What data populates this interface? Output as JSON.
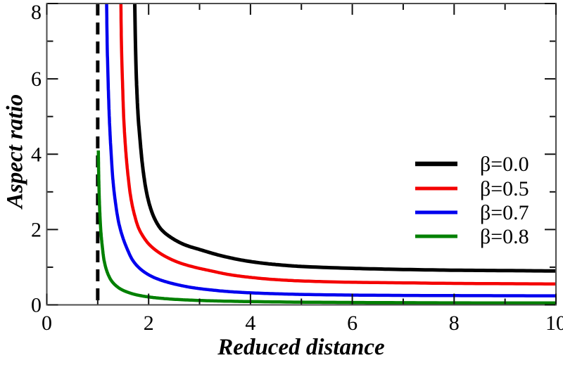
{
  "chart_data": {
    "type": "line",
    "title": "",
    "xlabel": "Reduced distance",
    "ylabel": "Aspect ratio",
    "xlim": [
      0,
      10
    ],
    "ylim": [
      0,
      8
    ],
    "x_major_ticks": [
      0,
      2,
      4,
      6,
      8,
      10
    ],
    "x_tick_labels": [
      "0",
      "2",
      "4",
      "6",
      "8",
      "10"
    ],
    "x_minor_ticks": [
      1,
      3,
      5,
      7,
      9
    ],
    "y_major_ticks": [
      0,
      2,
      4,
      6,
      8
    ],
    "y_tick_labels": [
      "0",
      "2",
      "4",
      "6",
      "8"
    ],
    "y_minor_ticks": [
      1,
      3,
      5,
      7
    ],
    "grid": false,
    "frame_color": "#4d4d4d",
    "tick_color": "#111111",
    "legend_position": "center-right",
    "annotations": [
      {
        "type": "vline",
        "x": 1.0,
        "style": "dashed",
        "color": "#000000"
      }
    ],
    "series": [
      {
        "name": "β=0.0",
        "color": "#000000",
        "line_width": 5,
        "points": [
          [
            1.72,
            8.6
          ],
          [
            1.74,
            7.0
          ],
          [
            1.76,
            6.0
          ],
          [
            1.79,
            5.1
          ],
          [
            1.83,
            4.4
          ],
          [
            1.88,
            3.7
          ],
          [
            1.95,
            3.05
          ],
          [
            2.03,
            2.6
          ],
          [
            2.12,
            2.28
          ],
          [
            2.25,
            2.0
          ],
          [
            2.45,
            1.78
          ],
          [
            2.7,
            1.6
          ],
          [
            3.0,
            1.47
          ],
          [
            3.5,
            1.28
          ],
          [
            4.0,
            1.15
          ],
          [
            4.5,
            1.07
          ],
          [
            5.0,
            1.02
          ],
          [
            6.0,
            0.97
          ],
          [
            7.0,
            0.94
          ],
          [
            8.0,
            0.92
          ],
          [
            9.0,
            0.91
          ],
          [
            10.0,
            0.9
          ]
        ]
      },
      {
        "name": "β=0.5",
        "color": "#f40000",
        "line_width": 4.5,
        "points": [
          [
            1.45,
            8.6
          ],
          [
            1.465,
            7.0
          ],
          [
            1.485,
            6.0
          ],
          [
            1.51,
            5.0
          ],
          [
            1.545,
            4.2
          ],
          [
            1.59,
            3.5
          ],
          [
            1.65,
            2.85
          ],
          [
            1.72,
            2.4
          ],
          [
            1.8,
            2.05
          ],
          [
            1.9,
            1.8
          ],
          [
            2.0,
            1.62
          ],
          [
            2.15,
            1.44
          ],
          [
            2.35,
            1.27
          ],
          [
            2.6,
            1.12
          ],
          [
            2.9,
            1.0
          ],
          [
            3.2,
            0.91
          ],
          [
            3.6,
            0.8
          ],
          [
            4.0,
            0.73
          ],
          [
            4.5,
            0.67
          ],
          [
            5.0,
            0.635
          ],
          [
            6.0,
            0.6
          ],
          [
            7.0,
            0.585
          ],
          [
            8.0,
            0.57
          ],
          [
            9.0,
            0.562
          ],
          [
            10.0,
            0.556
          ]
        ]
      },
      {
        "name": "β=0.7",
        "color": "#0000ee",
        "line_width": 4.5,
        "points": [
          [
            1.17,
            8.6
          ],
          [
            1.185,
            7.0
          ],
          [
            1.205,
            5.9
          ],
          [
            1.23,
            4.9
          ],
          [
            1.26,
            4.1
          ],
          [
            1.3,
            3.3
          ],
          [
            1.35,
            2.7
          ],
          [
            1.41,
            2.2
          ],
          [
            1.49,
            1.8
          ],
          [
            1.58,
            1.48
          ],
          [
            1.68,
            1.2
          ],
          [
            1.8,
            1.0
          ],
          [
            1.95,
            0.84
          ],
          [
            2.1,
            0.73
          ],
          [
            2.3,
            0.63
          ],
          [
            2.55,
            0.54
          ],
          [
            2.85,
            0.46
          ],
          [
            3.2,
            0.4
          ],
          [
            3.6,
            0.35
          ],
          [
            4.0,
            0.32
          ],
          [
            4.5,
            0.295
          ],
          [
            5.0,
            0.278
          ],
          [
            6.0,
            0.26
          ],
          [
            7.0,
            0.251
          ],
          [
            8.0,
            0.246
          ],
          [
            9.0,
            0.243
          ],
          [
            10.0,
            0.24
          ]
        ]
      },
      {
        "name": "β=0.8",
        "color": "#008000",
        "line_width": 4.5,
        "points": [
          [
            1.012,
            4.1
          ],
          [
            1.02,
            3.4
          ],
          [
            1.03,
            2.85
          ],
          [
            1.045,
            2.35
          ],
          [
            1.065,
            1.9
          ],
          [
            1.09,
            1.55
          ],
          [
            1.12,
            1.22
          ],
          [
            1.16,
            0.98
          ],
          [
            1.21,
            0.79
          ],
          [
            1.27,
            0.64
          ],
          [
            1.35,
            0.52
          ],
          [
            1.45,
            0.42
          ],
          [
            1.58,
            0.34
          ],
          [
            1.75,
            0.27
          ],
          [
            1.95,
            0.22
          ],
          [
            2.2,
            0.18
          ],
          [
            2.5,
            0.148
          ],
          [
            2.9,
            0.122
          ],
          [
            3.4,
            0.102
          ],
          [
            4.0,
            0.088
          ],
          [
            5.0,
            0.072
          ],
          [
            6.0,
            0.064
          ],
          [
            7.0,
            0.058
          ],
          [
            8.0,
            0.054
          ],
          [
            9.0,
            0.052
          ],
          [
            10.0,
            0.05
          ]
        ]
      }
    ]
  }
}
